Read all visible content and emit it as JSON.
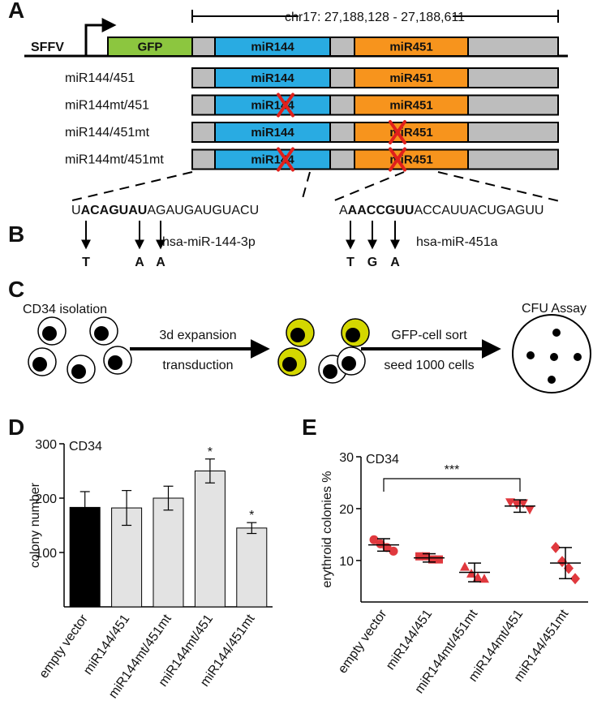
{
  "panel_labels": [
    "A",
    "B",
    "C",
    "D",
    "E"
  ],
  "a": {
    "promoter": "SFFV",
    "gfp": "GFP",
    "region": "chr17: 27,188,128 - 27,188,611",
    "mir144": "miR144",
    "mir451": "miR451",
    "constructs": [
      {
        "label": "miR144/451",
        "mut144": false,
        "mut451": false
      },
      {
        "label": "miR144mt/451",
        "mut144": true,
        "mut451": false
      },
      {
        "label": "miR144/451mt",
        "mut144": false,
        "mut451": true
      },
      {
        "label": "miR144mt/451mt",
        "mut144": true,
        "mut451": true
      }
    ]
  },
  "b": {
    "sequences": [
      {
        "parts": [
          "U",
          "ACAGUAU",
          "AGAUGAUGUACU"
        ],
        "name": "hsa-miR-144-3p",
        "mutations": [
          "T",
          "A",
          "A"
        ]
      },
      {
        "parts": [
          "A",
          "AACCGUU",
          "ACCAUUACUGAGUU"
        ],
        "name": "hsa-miR-451a",
        "mutations": [
          "T",
          "G",
          "A"
        ]
      }
    ]
  },
  "c": {
    "start": "CD34 isolation",
    "step1_above": "3d expansion",
    "step1_below": "transduction",
    "step2_above": "GFP-cell sort",
    "step2_below": "seed 1000 cells",
    "end": "CFU Assay"
  },
  "chart_data": [
    {
      "type": "bar",
      "title": "CD34",
      "ylabel": "colony number",
      "categories": [
        "empty vector",
        "miR144/451",
        "miR144mt/451mt",
        "miR144mt/451",
        "miR144/451mt"
      ],
      "values": [
        183,
        182,
        200,
        250,
        145
      ],
      "errors": [
        29,
        32,
        22,
        22,
        10
      ],
      "colors": [
        "#000000",
        "#e3e3e3",
        "#e3e3e3",
        "#e3e3e3",
        "#e3e3e3"
      ],
      "annotations": [
        null,
        null,
        null,
        "*",
        "*"
      ],
      "ylim": [
        0,
        300
      ],
      "yticks": [
        100,
        200,
        300
      ]
    },
    {
      "type": "dot",
      "title": "CD34",
      "ylabel": "erythroid colonies %",
      "categories": [
        "empty vector",
        "miR144/451",
        "miR144mt/451mt",
        "miR144mt/451",
        "miR144/451mt"
      ],
      "color": "#e0393e",
      "groups": [
        {
          "marker": "circle",
          "values": [
            14.0,
            13.2,
            12.5,
            11.8
          ],
          "mean": 13,
          "error": 1.2
        },
        {
          "marker": "square",
          "values": [
            10.8,
            10.8,
            10.2,
            10.2
          ],
          "mean": 10.5,
          "error": 0.8
        },
        {
          "marker": "triangle",
          "values": [
            8.8,
            7.5,
            6.8,
            6.5
          ],
          "mean": 7.7,
          "error": 1.8
        },
        {
          "marker": "triangle-down",
          "values": [
            21.2,
            20.8,
            21.0,
            19.8
          ],
          "mean": 20.5,
          "error": 1.2
        },
        {
          "marker": "diamond",
          "values": [
            12.5,
            9.8,
            8.5,
            6.5
          ],
          "mean": 9.5,
          "error": 3
        }
      ],
      "significance": {
        "from": 0,
        "to": 3,
        "label": "***"
      },
      "ylim": [
        2,
        30
      ],
      "yticks": [
        10,
        20,
        30
      ]
    }
  ]
}
